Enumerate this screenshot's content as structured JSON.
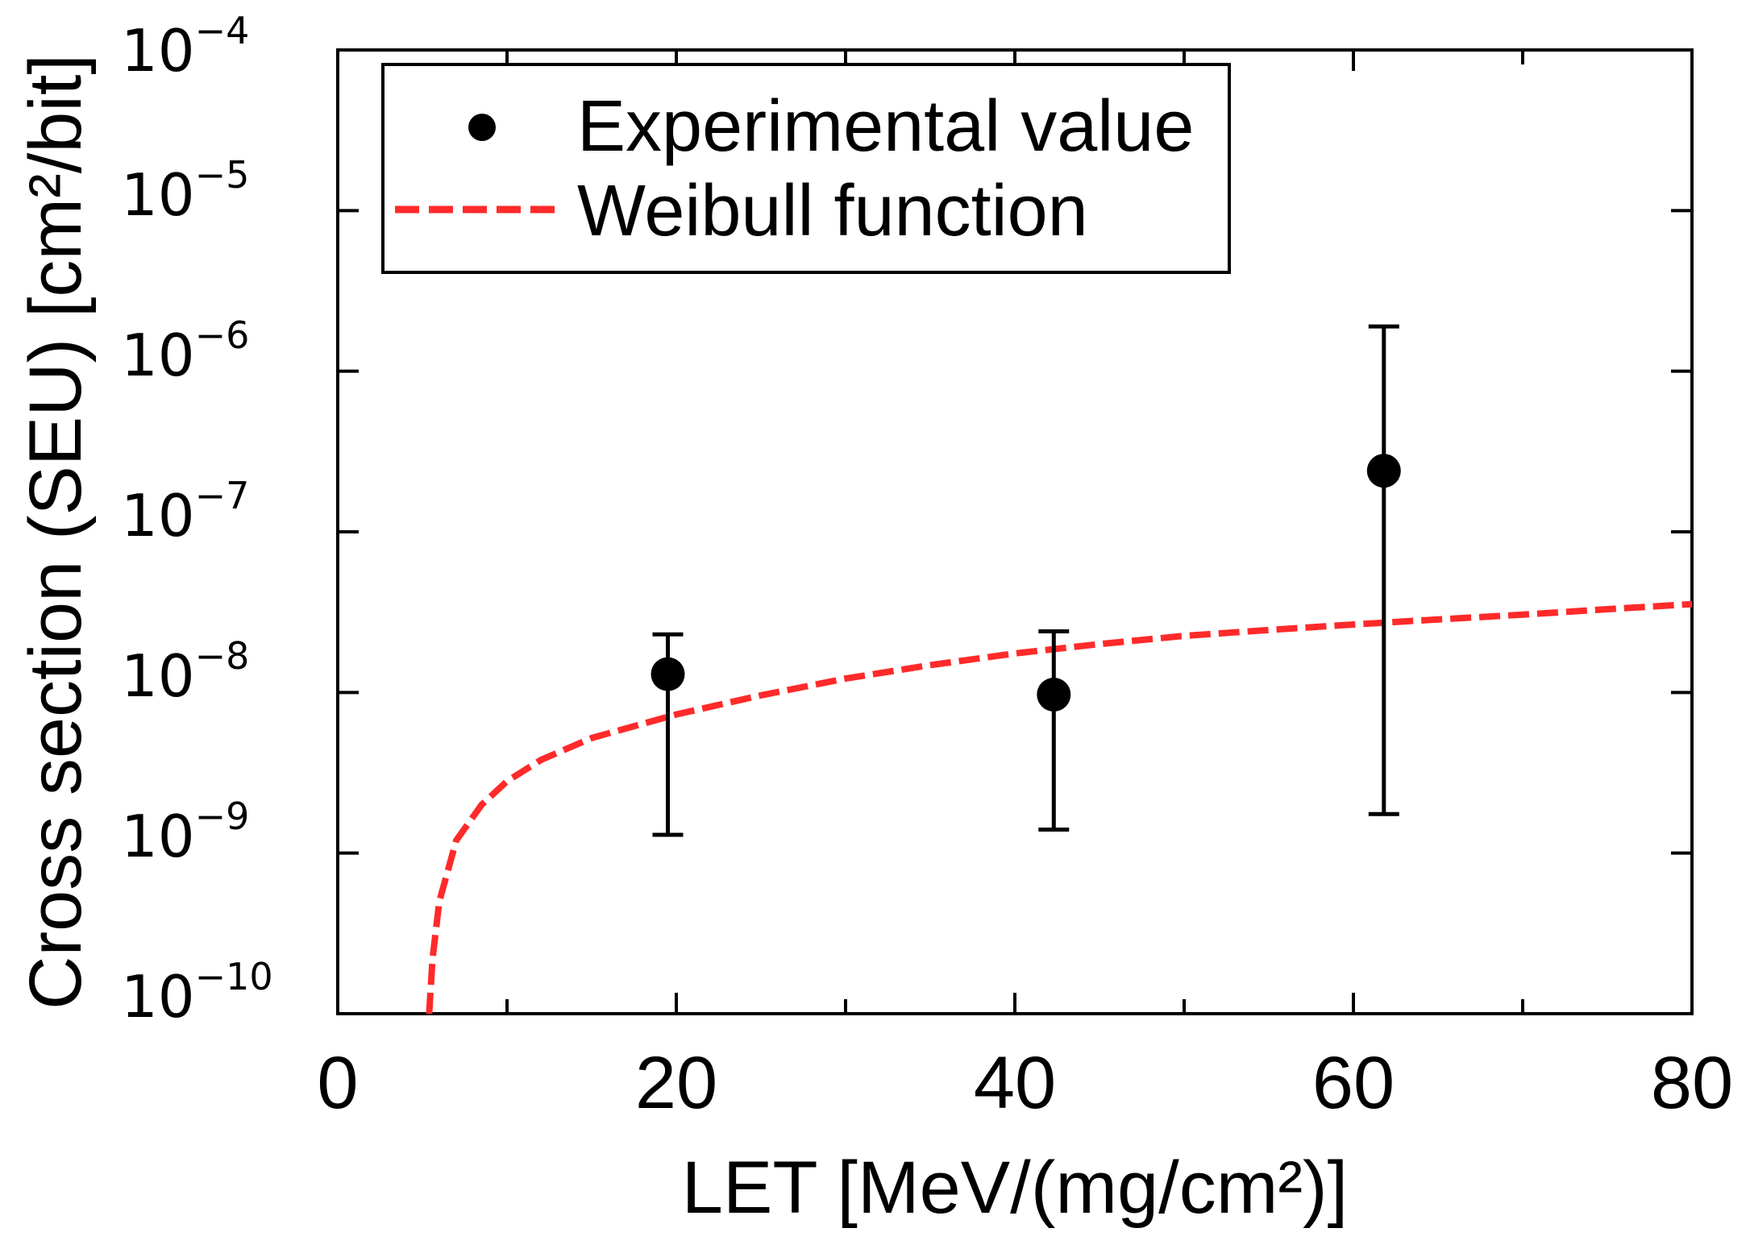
{
  "chart_data": {
    "type": "scatter",
    "title": "",
    "xlabel": "LET [MeV/(mg/cm²)]",
    "ylabel": "Cross section (SEU) [cm²/bit]",
    "xlim": [
      0,
      80
    ],
    "ylim": [
      1e-10,
      0.0001
    ],
    "yscale": "log",
    "x_ticks": [
      0,
      20,
      40,
      60,
      80
    ],
    "x_tick_labels": [
      "0",
      "20",
      "40",
      "60",
      "80"
    ],
    "y_ticks": [
      {
        "base": "10",
        "exp": "−10",
        "value": 1e-10
      },
      {
        "base": "10",
        "exp": "−9",
        "value": 1e-09
      },
      {
        "base": "10",
        "exp": "−8",
        "value": 1e-08
      },
      {
        "base": "10",
        "exp": "−7",
        "value": 1e-07
      },
      {
        "base": "10",
        "exp": "−6",
        "value": 1e-06
      },
      {
        "base": "10",
        "exp": "−5",
        "value": 1e-05
      },
      {
        "base": "10",
        "exp": "−4",
        "value": 0.0001
      }
    ],
    "legend": {
      "position": "top-left",
      "entries": [
        "Experimental value",
        "Weibull function"
      ]
    },
    "series": [
      {
        "name": "Experimental value",
        "kind": "points-with-errorbars",
        "color": "#000000",
        "points": [
          {
            "x": 19.5,
            "y": 1.3e-08,
            "y_low": 1.3e-09,
            "y_high": 2.3e-08
          },
          {
            "x": 42.3,
            "y": 9.7e-09,
            "y_low": 1.4e-09,
            "y_high": 2.4e-08
          },
          {
            "x": 61.8,
            "y": 2.4e-07,
            "y_low": 1.75e-09,
            "y_high": 1.9e-06
          }
        ]
      },
      {
        "name": "Weibull function",
        "kind": "dashed-line",
        "color": "#ff2a2a",
        "points": [
          {
            "x": 5.4,
            "y": 1e-10
          },
          {
            "x": 5.6,
            "y": 2.2e-10
          },
          {
            "x": 6.0,
            "y": 5e-10
          },
          {
            "x": 7.0,
            "y": 1.2e-09
          },
          {
            "x": 8.5,
            "y": 2e-09
          },
          {
            "x": 10,
            "y": 2.8e-09
          },
          {
            "x": 12,
            "y": 3.8e-09
          },
          {
            "x": 15,
            "y": 5.2e-09
          },
          {
            "x": 20,
            "y": 7.3e-09
          },
          {
            "x": 25,
            "y": 9.6e-09
          },
          {
            "x": 30,
            "y": 1.22e-08
          },
          {
            "x": 35,
            "y": 1.48e-08
          },
          {
            "x": 40,
            "y": 1.75e-08
          },
          {
            "x": 45,
            "y": 2e-08
          },
          {
            "x": 50,
            "y": 2.25e-08
          },
          {
            "x": 55,
            "y": 2.45e-08
          },
          {
            "x": 60,
            "y": 2.65e-08
          },
          {
            "x": 65,
            "y": 2.85e-08
          },
          {
            "x": 70,
            "y": 3.05e-08
          },
          {
            "x": 75,
            "y": 3.3e-08
          },
          {
            "x": 80,
            "y": 3.55e-08
          }
        ]
      }
    ]
  }
}
